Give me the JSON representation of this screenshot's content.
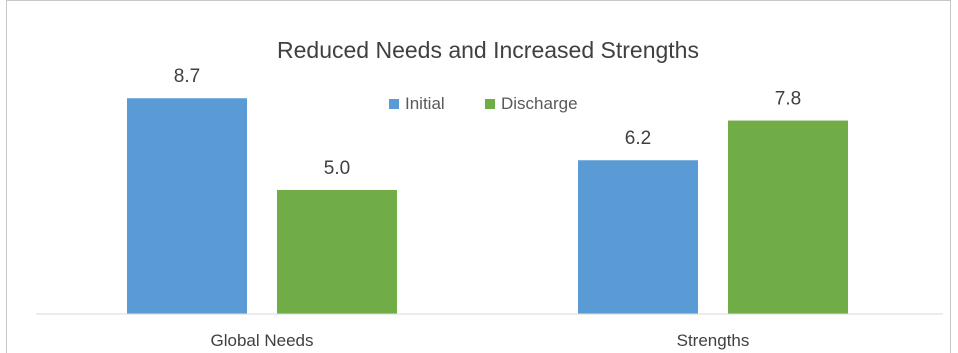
{
  "chart_data": {
    "type": "bar",
    "title": "Reduced Needs and Increased Strengths",
    "categories": [
      "Global Needs",
      "Strengths"
    ],
    "series": [
      {
        "name": "Initial",
        "values": [
          8.7,
          6.2
        ],
        "color": "#5b9bd5"
      },
      {
        "name": "Discharge",
        "values": [
          5.0,
          7.8
        ],
        "color": "#70ad47"
      }
    ],
    "data_labels": [
      [
        "8.7",
        "6.2"
      ],
      [
        "5.0",
        "7.8"
      ]
    ],
    "xlabel": "",
    "ylabel": "",
    "ylim": [
      0,
      10
    ],
    "legend_position": "top-center",
    "grid": false
  }
}
